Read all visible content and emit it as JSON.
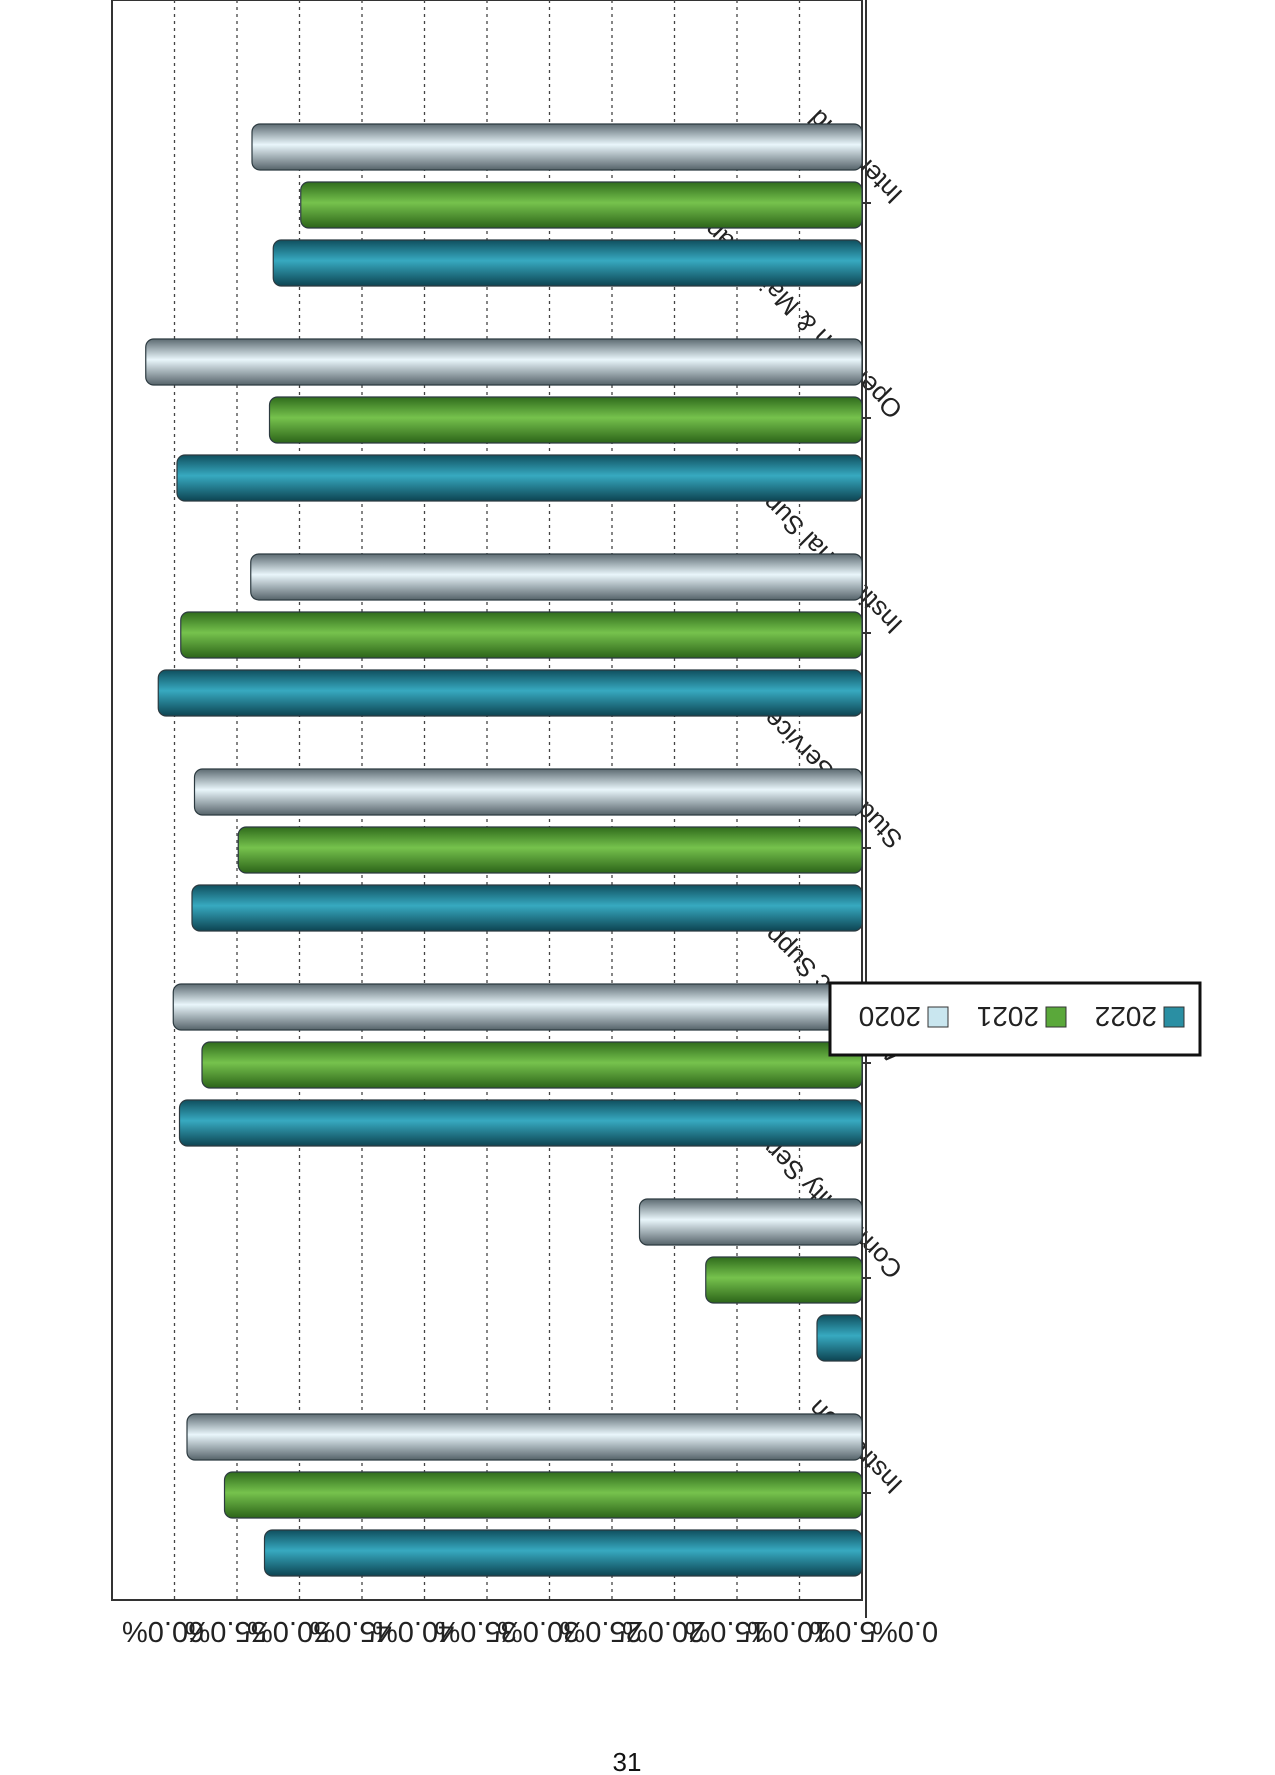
{
  "page_number": "31",
  "chart_data": {
    "type": "bar",
    "orientation": "rotated",
    "categories": [
      "Instruction",
      "Community Service",
      "Academic Support",
      "Student Service",
      "Institutional Support",
      "Operation & Maintenances",
      "Inter-Fund"
    ],
    "series": [
      {
        "name": "2022",
        "color": "#2a8fa3",
        "values": [
          47.8,
          3.6,
          54.6,
          53.6,
          56.3,
          54.8,
          47.1
        ]
      },
      {
        "name": "2021",
        "color": "#5aa83a",
        "values": [
          51.0,
          12.5,
          52.8,
          49.9,
          54.5,
          47.4,
          44.9
        ]
      },
      {
        "name": "2020",
        "color": "#c9e6ef",
        "values": [
          54.0,
          17.8,
          55.1,
          53.4,
          48.9,
          57.3,
          48.8
        ]
      }
    ],
    "value_axis": {
      "min": 0,
      "max": 60,
      "step": 5,
      "tick_labels": [
        "0.0%",
        "5.0%",
        "10.0%",
        "15.0%",
        "20.0%",
        "25.0%",
        "30.0%",
        "35.0%",
        "40.0%",
        "45.0%",
        "50.0%",
        "55.0%",
        "60.0%"
      ]
    },
    "grid": true,
    "legend_position": "bottom"
  }
}
